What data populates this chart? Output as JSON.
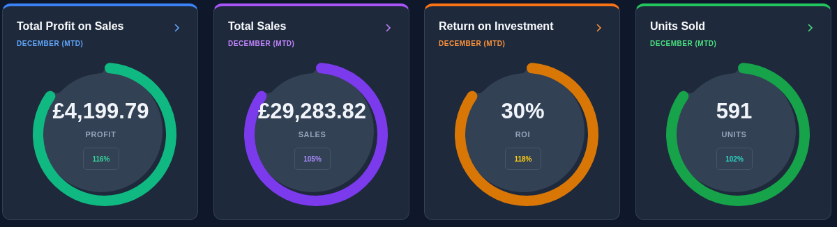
{
  "chart_data": [
    {
      "type": "donut",
      "title": "Total Profit on Sales",
      "subtitle": "DECEMBER (MTD)",
      "categories": [
        null,
        null
      ],
      "values": [
        86,
        14
      ],
      "colors": [
        "#10b981",
        "#1e293b"
      ],
      "annotations": [
        "£4,199.79",
        "PROFIT",
        "116%"
      ]
    },
    {
      "type": "donut",
      "title": "Total Sales",
      "subtitle": "DECEMBER (MTD)",
      "categories": [
        null,
        null
      ],
      "values": [
        86,
        14
      ],
      "colors": [
        "#7c3aed",
        "#1e293b"
      ],
      "annotations": [
        "£29,283.82",
        "SALES",
        "105%"
      ]
    },
    {
      "type": "donut",
      "title": "Return on Investment",
      "subtitle": "DECEMBER (MTD)",
      "categories": [
        null,
        null
      ],
      "values": [
        86,
        14
      ],
      "colors": [
        "#d97706",
        "#1e293b"
      ],
      "annotations": [
        "30%",
        "ROI",
        "118%"
      ]
    },
    {
      "type": "donut",
      "title": "Units Sold",
      "subtitle": "DECEMBER (MTD)",
      "categories": [
        null,
        null
      ],
      "values": [
        86,
        14
      ],
      "colors": [
        "#16a34a",
        "#1e293b"
      ],
      "annotations": [
        "591",
        "UNITS",
        "102%"
      ]
    }
  ]
}
